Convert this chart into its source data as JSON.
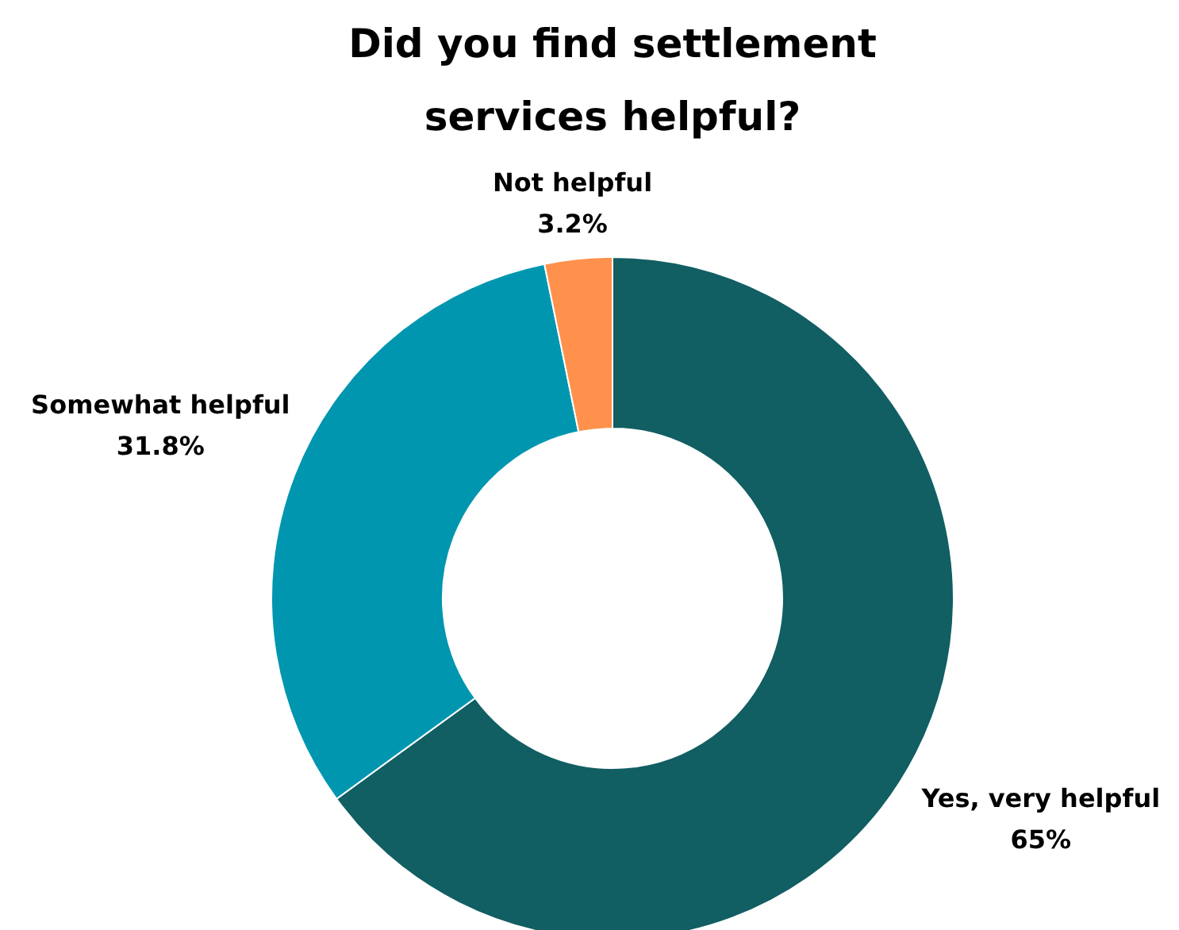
{
  "chart_data": {
    "type": "donut",
    "title": "Did you find settlement services helpful?",
    "categories": [
      "Yes, very helpful",
      "Somewhat helpful",
      "Not helpful"
    ],
    "values": [
      65,
      31.8,
      3.2
    ],
    "value_labels": [
      "65%",
      "31.8%",
      "3.2%"
    ],
    "colors": [
      "#115e63",
      "#0096b0",
      "#ff914d"
    ]
  }
}
